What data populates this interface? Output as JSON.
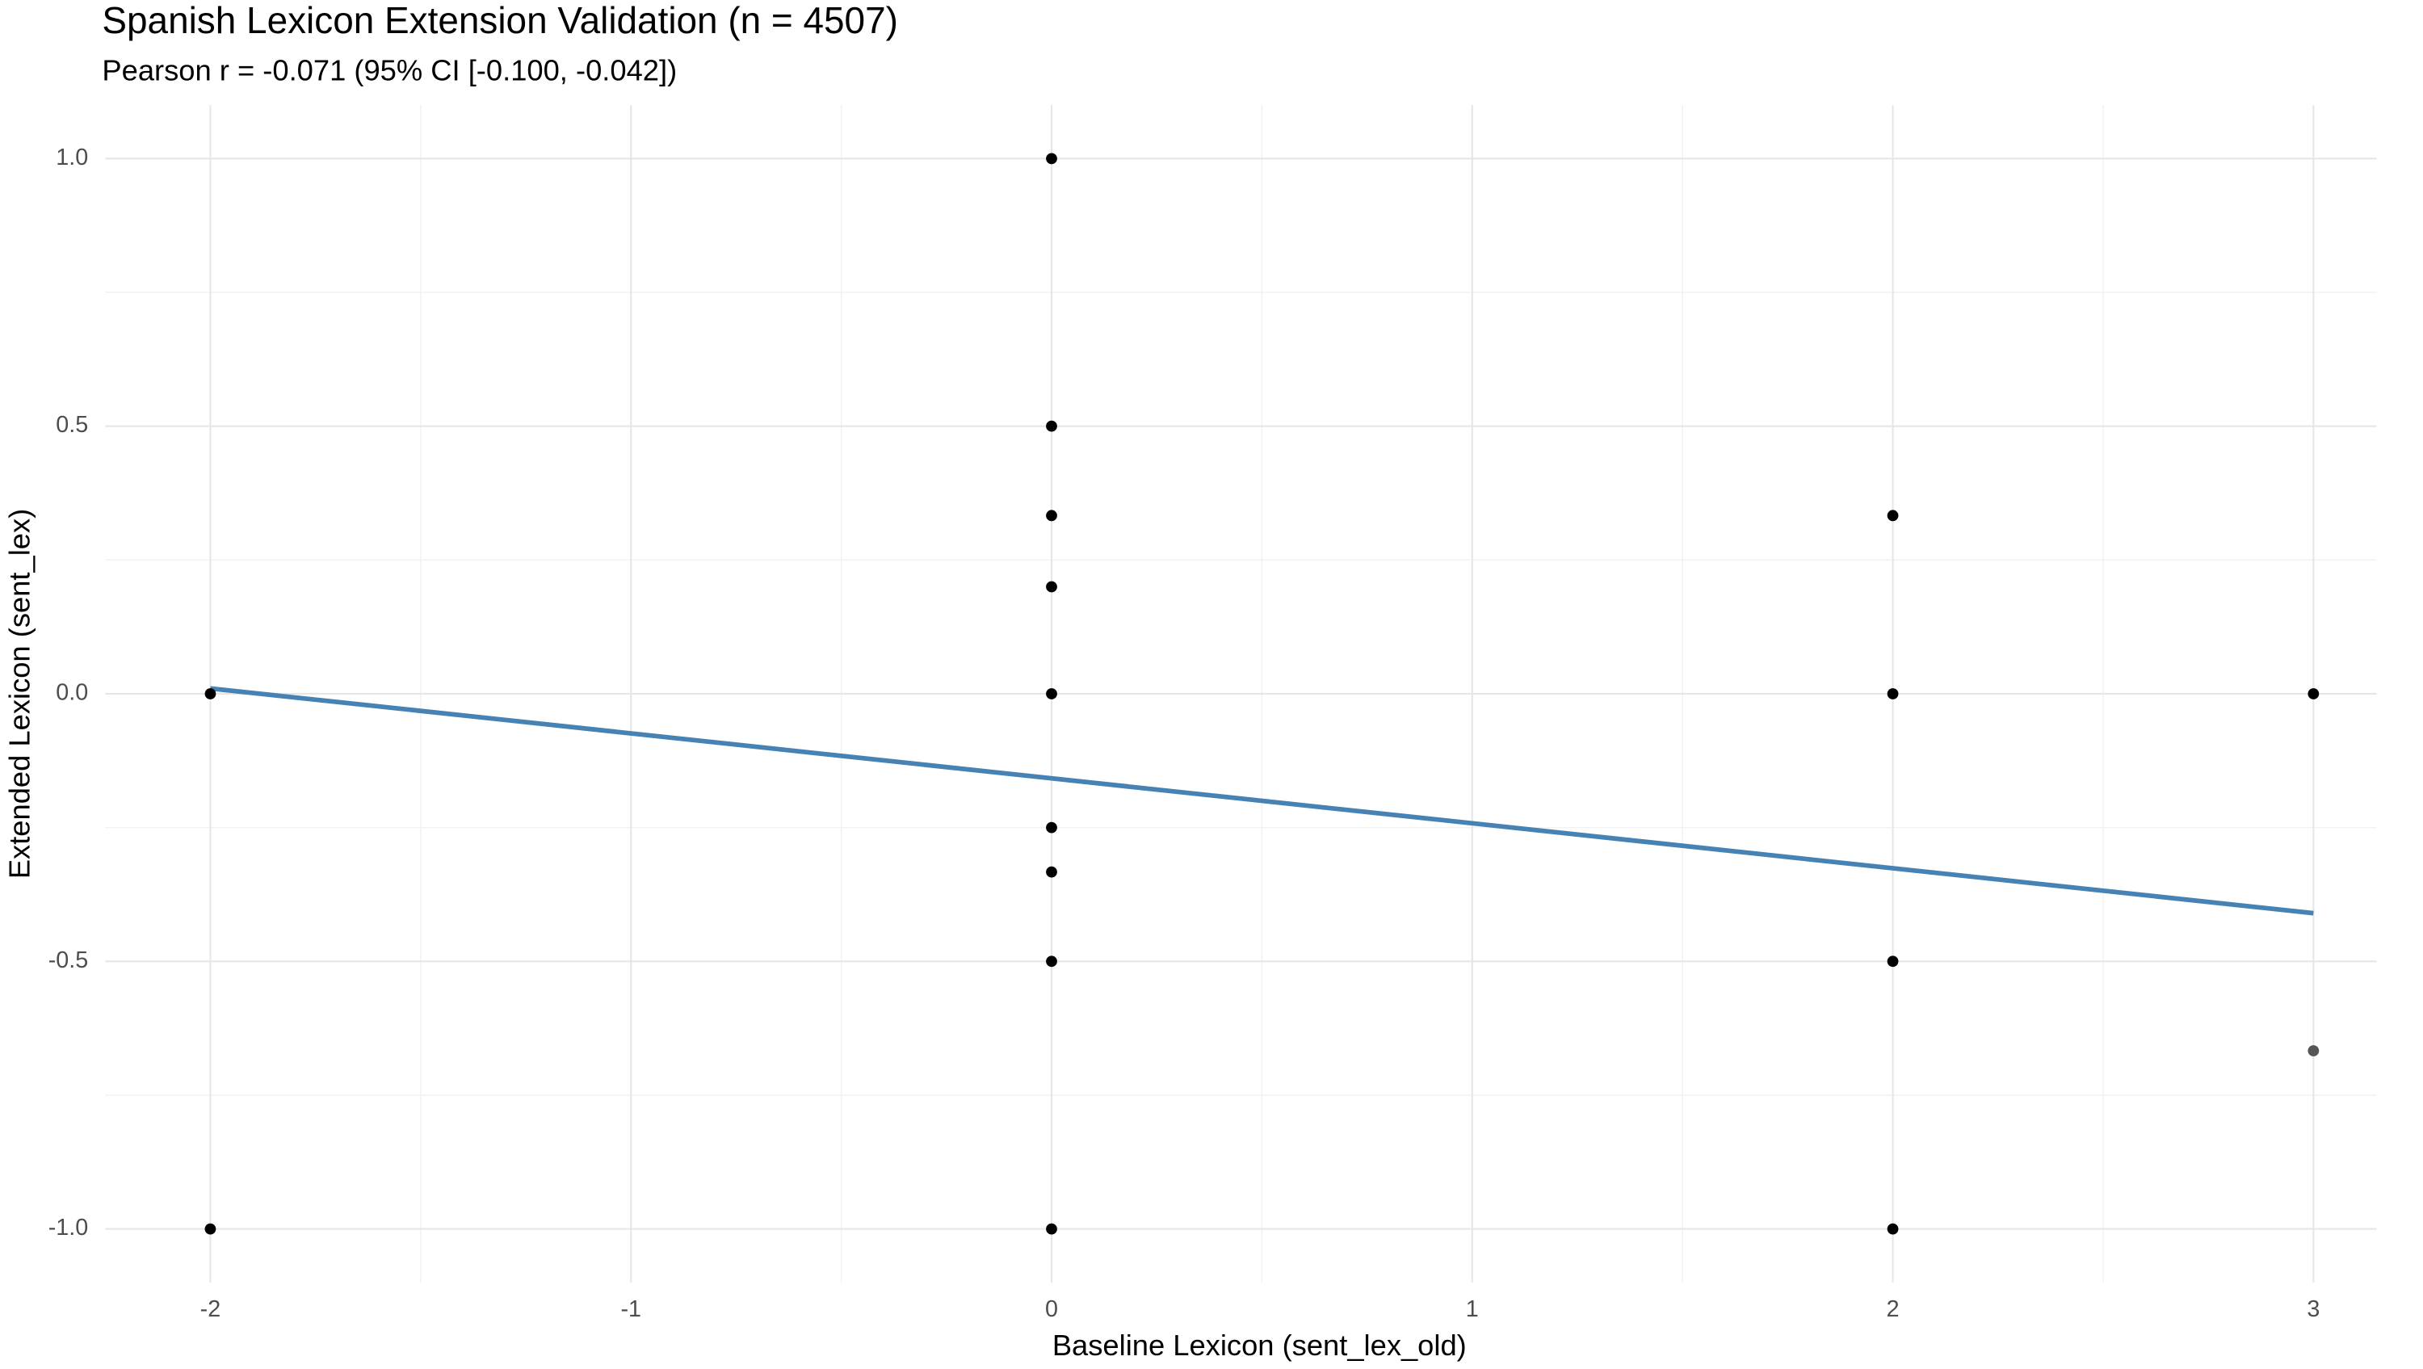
{
  "chart_data": {
    "type": "scatter",
    "title": "Spanish Lexicon Extension Validation (n = 4507)",
    "subtitle": "Pearson r = -0.071 (95% CI [-0.100, -0.042])",
    "x_label": "Baseline Lexicon (sent_lex_old)",
    "y_label": "Extended Lexicon (sent_lex)",
    "x": [
      -2,
      -2,
      0,
      0,
      0,
      0,
      0,
      0,
      0,
      0,
      0,
      2,
      2,
      2,
      2,
      3,
      3
    ],
    "values": [
      0,
      -1,
      1,
      0.5,
      0.333,
      0.2,
      0,
      -0.25,
      -0.333,
      -0.5,
      -1,
      0.333,
      0,
      -0.5,
      -1,
      0,
      -0.667
    ],
    "colors": [
      "#000000",
      "#000000",
      "#000000",
      "#000000",
      "#000000",
      "#000000",
      "#000000",
      "#000000",
      "#000000",
      "#000000",
      "#000000",
      "#000000",
      "#000000",
      "#000000",
      "#000000",
      "#000000",
      "#555555"
    ],
    "fit_line": {
      "x": [
        -2,
        3
      ],
      "values": [
        0.01,
        -0.41
      ],
      "color": "#4682b4"
    },
    "xlim": [
      -2.25,
      3.15
    ],
    "ylim": [
      -1.1,
      1.1
    ],
    "xticks": [
      -2,
      -1,
      0,
      1,
      2,
      3
    ],
    "yticks": [
      {
        "value": -1,
        "label": "-1.0"
      },
      {
        "value": -0.5,
        "label": "-0.5"
      },
      {
        "value": 0,
        "label": "0.0"
      },
      {
        "value": 0.5,
        "label": "0.5"
      },
      {
        "value": 1,
        "label": "1.0"
      }
    ],
    "grid": true
  }
}
